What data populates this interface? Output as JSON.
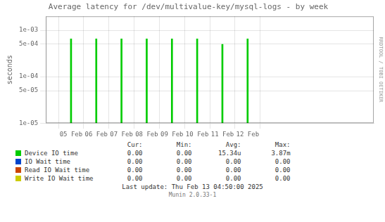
{
  "chart_data": {
    "type": "bar",
    "title": "Average latency for /dev/multivalue-key/mysql-logs - by week",
    "ylabel": "seconds",
    "x": [
      1738540800,
      1738627200,
      1738713600,
      1738800000,
      1738886400,
      1738972800,
      1739059200,
      1739145600
    ],
    "xlim": [
      1738454400,
      1739577600
    ],
    "xticks": [
      {
        "value": 1738540800,
        "label": "05 Feb"
      },
      {
        "value": 1738627200,
        "label": "06 Feb"
      },
      {
        "value": 1738713600,
        "label": "07 Feb"
      },
      {
        "value": 1738800000,
        "label": "08 Feb"
      },
      {
        "value": 1738886400,
        "label": "09 Feb"
      },
      {
        "value": 1738972800,
        "label": "10 Feb"
      },
      {
        "value": 1739059200,
        "label": "11 Feb"
      },
      {
        "value": 1739145600,
        "label": "12 Feb"
      }
    ],
    "ylim": [
      1e-05,
      0.002
    ],
    "yticks": [
      {
        "value": 1e-05,
        "label": "1e-05"
      },
      {
        "value": 5e-05,
        "label": "5e-05"
      },
      {
        "value": 0.0001,
        "label": "1e-04"
      },
      {
        "value": 0.0005,
        "label": "5e-04"
      },
      {
        "value": 0.001,
        "label": "1e-03"
      }
    ],
    "log": "y",
    "grid": true,
    "stat_labels": [
      "Cur:",
      "Min:",
      "Avg:",
      "Max:"
    ],
    "series": [
      {
        "name": "Device IO time",
        "color": "#00cc00",
        "values": [
          0.00065,
          0.00065,
          0.00065,
          0.00065,
          0.00065,
          0.00065,
          0.0005,
          0.00065
        ],
        "stats": [
          "0.00",
          "0.00",
          "15.34u",
          "3.87m"
        ]
      },
      {
        "name": "IO Wait time",
        "color": "#0044cc",
        "values": [
          null,
          null,
          null,
          null,
          null,
          null,
          null,
          null
        ],
        "stats": [
          "0.00",
          "0.00",
          "0.00",
          "0.00"
        ]
      },
      {
        "name": "Read IO Wait time",
        "color": "#cc4400",
        "values": [
          null,
          null,
          null,
          null,
          null,
          null,
          null,
          null
        ],
        "stats": [
          "0.00",
          "0.00",
          "0.00",
          "0.00"
        ]
      },
      {
        "name": "Write IO Wait time",
        "color": "#cccc00",
        "values": [
          null,
          null,
          null,
          null,
          null,
          null,
          null,
          null
        ],
        "stats": [
          "0.00",
          "0.00",
          "0.00",
          "0.00"
        ]
      }
    ],
    "annotations": [
      "RRDTOOL / TOBI OETIKER",
      "Last update:  Thu Feb 13 04:50:00 2025",
      "Munin 2.0.33-1"
    ]
  }
}
